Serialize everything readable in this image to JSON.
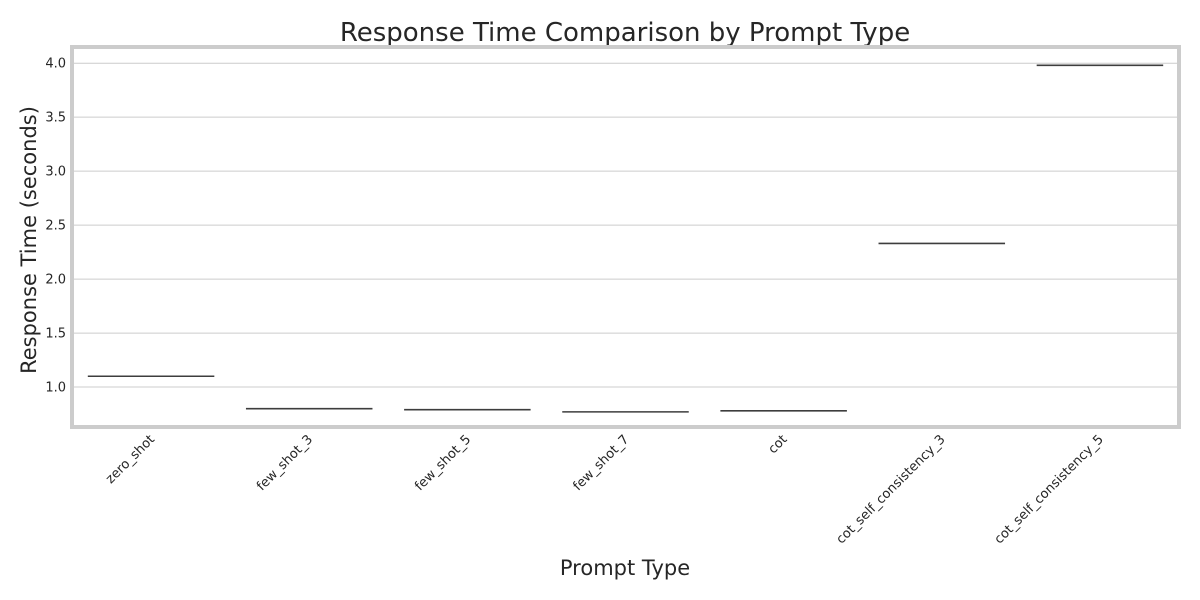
{
  "chart_data": {
    "type": "box",
    "title": "Response Time Comparison by Prompt Type",
    "xlabel": "Prompt Type",
    "ylabel": "Response Time (seconds)",
    "categories": [
      "zero_shot",
      "few_shot_3",
      "few_shot_5",
      "few_shot_7",
      "cot",
      "cot_self_consistency_3",
      "cot_self_consistency_5"
    ],
    "values": [
      1.1,
      0.8,
      0.79,
      0.77,
      0.78,
      2.33,
      3.98
    ],
    "yticks": [
      "1.0",
      "1.5",
      "2.0",
      "2.5",
      "3.0",
      "3.5",
      "4.0"
    ],
    "ylim": [
      0.63,
      4.15
    ],
    "grid": true,
    "colors": {
      "grid": "#cccccc",
      "frame": "#cccccc",
      "median": "#3d3d3d",
      "text": "#262626"
    }
  }
}
